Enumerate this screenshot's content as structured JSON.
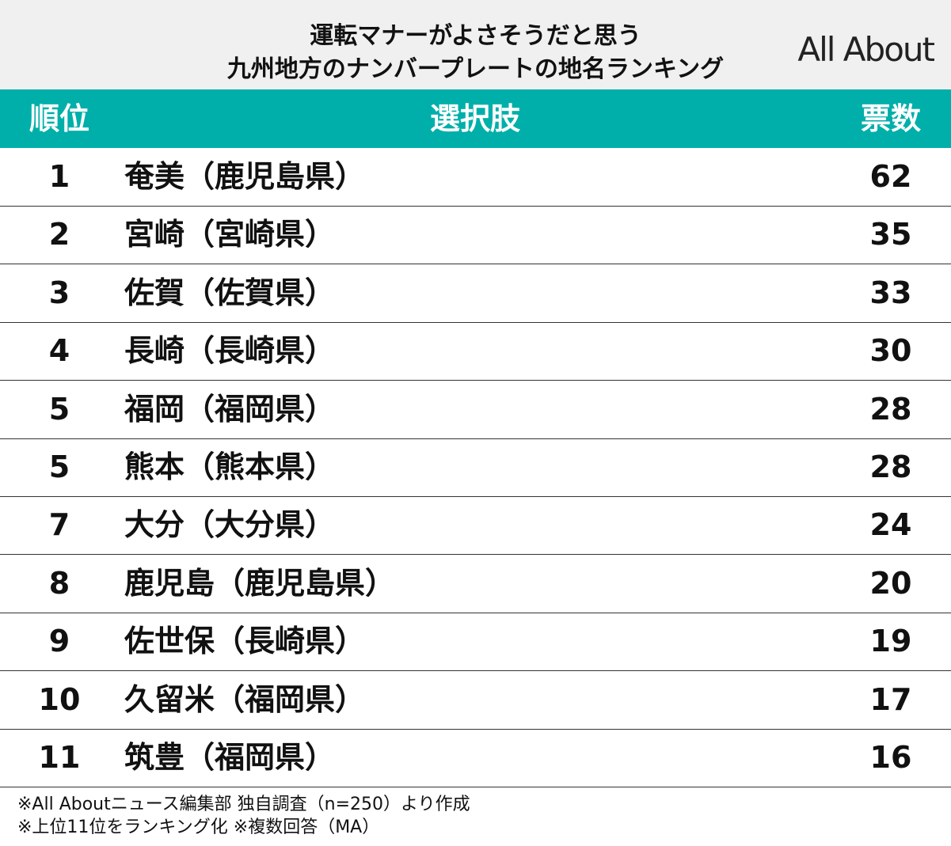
{
  "header": {
    "title_lines": [
      "運転マナーがよさそうだと思う",
      "九州地方のナンバープレートの地名ランキング"
    ],
    "logo": "All About"
  },
  "table": {
    "columns": [
      "順位",
      "選択肢",
      "票数"
    ],
    "rows": [
      [
        "1",
        "奄美（鹿児島県）",
        62
      ],
      [
        "2",
        "宮崎（宮崎県）",
        35
      ],
      [
        "3",
        "佐賀（佐賀県）",
        33
      ],
      [
        "4",
        "長崎（長崎県）",
        30
      ],
      [
        "5",
        "福岡（福岡県）",
        28
      ],
      [
        "5",
        "熊本（熊本県）",
        28
      ],
      [
        "7",
        "大分（大分県）",
        24
      ],
      [
        "8",
        "鹿児島（鹿児島県）",
        20
      ],
      [
        "9",
        "佐世保（長崎県）",
        19
      ],
      [
        "10",
        "久留米（福岡県）",
        17
      ],
      [
        "11",
        "筑豊（福岡県）",
        16
      ]
    ]
  },
  "footnotes": [
    "※All Aboutニュース編集部 独自調査（n=250）より作成",
    "※上位11位をランキング化 ※複数回答（MA）"
  ]
}
